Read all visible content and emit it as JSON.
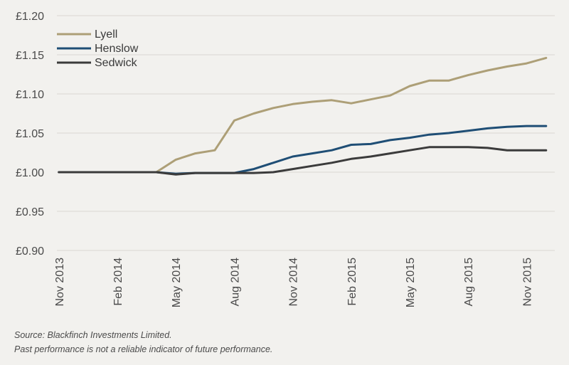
{
  "chart_data": {
    "type": "line",
    "x": [
      "2013-11-01",
      "2013-12-01",
      "2014-01-01",
      "2014-02-01",
      "2014-03-01",
      "2014-04-01",
      "2014-05-01",
      "2014-06-01",
      "2014-07-01",
      "2014-08-01",
      "2014-09-01",
      "2014-10-01",
      "2014-11-01",
      "2014-12-01",
      "2015-01-01",
      "2015-02-01",
      "2015-03-01",
      "2015-04-01",
      "2015-05-01",
      "2015-06-01",
      "2015-07-01",
      "2015-08-01",
      "2015-09-01",
      "2015-10-01",
      "2015-11-01",
      "2015-12-01"
    ],
    "xticks": [
      "Nov 2013",
      "Feb 2014",
      "May 2014",
      "Aug 2014",
      "Nov 2014",
      "Feb 2015",
      "May 2015",
      "Aug 2015",
      "Nov 2015"
    ],
    "yticks": [
      "£0.90",
      "£0.95",
      "£1.00",
      "£1.05",
      "£1.10",
      "£1.15",
      "£1.20"
    ],
    "ylim": [
      0.9,
      1.2
    ],
    "grid": true,
    "legend_position": "top-left",
    "series": [
      {
        "name": "Lyell",
        "color": "#ad9f77",
        "values": [
          1.0,
          1.0,
          1.0,
          1.0,
          1.0,
          1.0,
          1.016,
          1.024,
          1.028,
          1.066,
          1.075,
          1.082,
          1.087,
          1.09,
          1.092,
          1.088,
          1.093,
          1.098,
          1.11,
          1.117,
          1.117,
          1.124,
          1.13,
          1.135,
          1.139,
          1.146
        ]
      },
      {
        "name": "Henslow",
        "color": "#1f4e75",
        "values": [
          1.0,
          1.0,
          1.0,
          1.0,
          1.0,
          1.0,
          0.998,
          0.999,
          0.999,
          0.999,
          1.004,
          1.012,
          1.02,
          1.024,
          1.028,
          1.035,
          1.036,
          1.041,
          1.044,
          1.048,
          1.05,
          1.053,
          1.056,
          1.058,
          1.059,
          1.059
        ]
      },
      {
        "name": "Sedwick",
        "color": "#3b3b3b",
        "values": [
          1.0,
          1.0,
          1.0,
          1.0,
          1.0,
          1.0,
          0.997,
          0.999,
          0.999,
          0.999,
          0.999,
          1.0,
          1.004,
          1.008,
          1.012,
          1.017,
          1.02,
          1.024,
          1.028,
          1.032,
          1.032,
          1.032,
          1.031,
          1.028,
          1.028,
          1.028
        ]
      }
    ]
  },
  "footnotes": {
    "source": "Source: Blackfinch Investments Limited.",
    "disclaimer": "Past performance is not a reliable indicator of future performance."
  }
}
